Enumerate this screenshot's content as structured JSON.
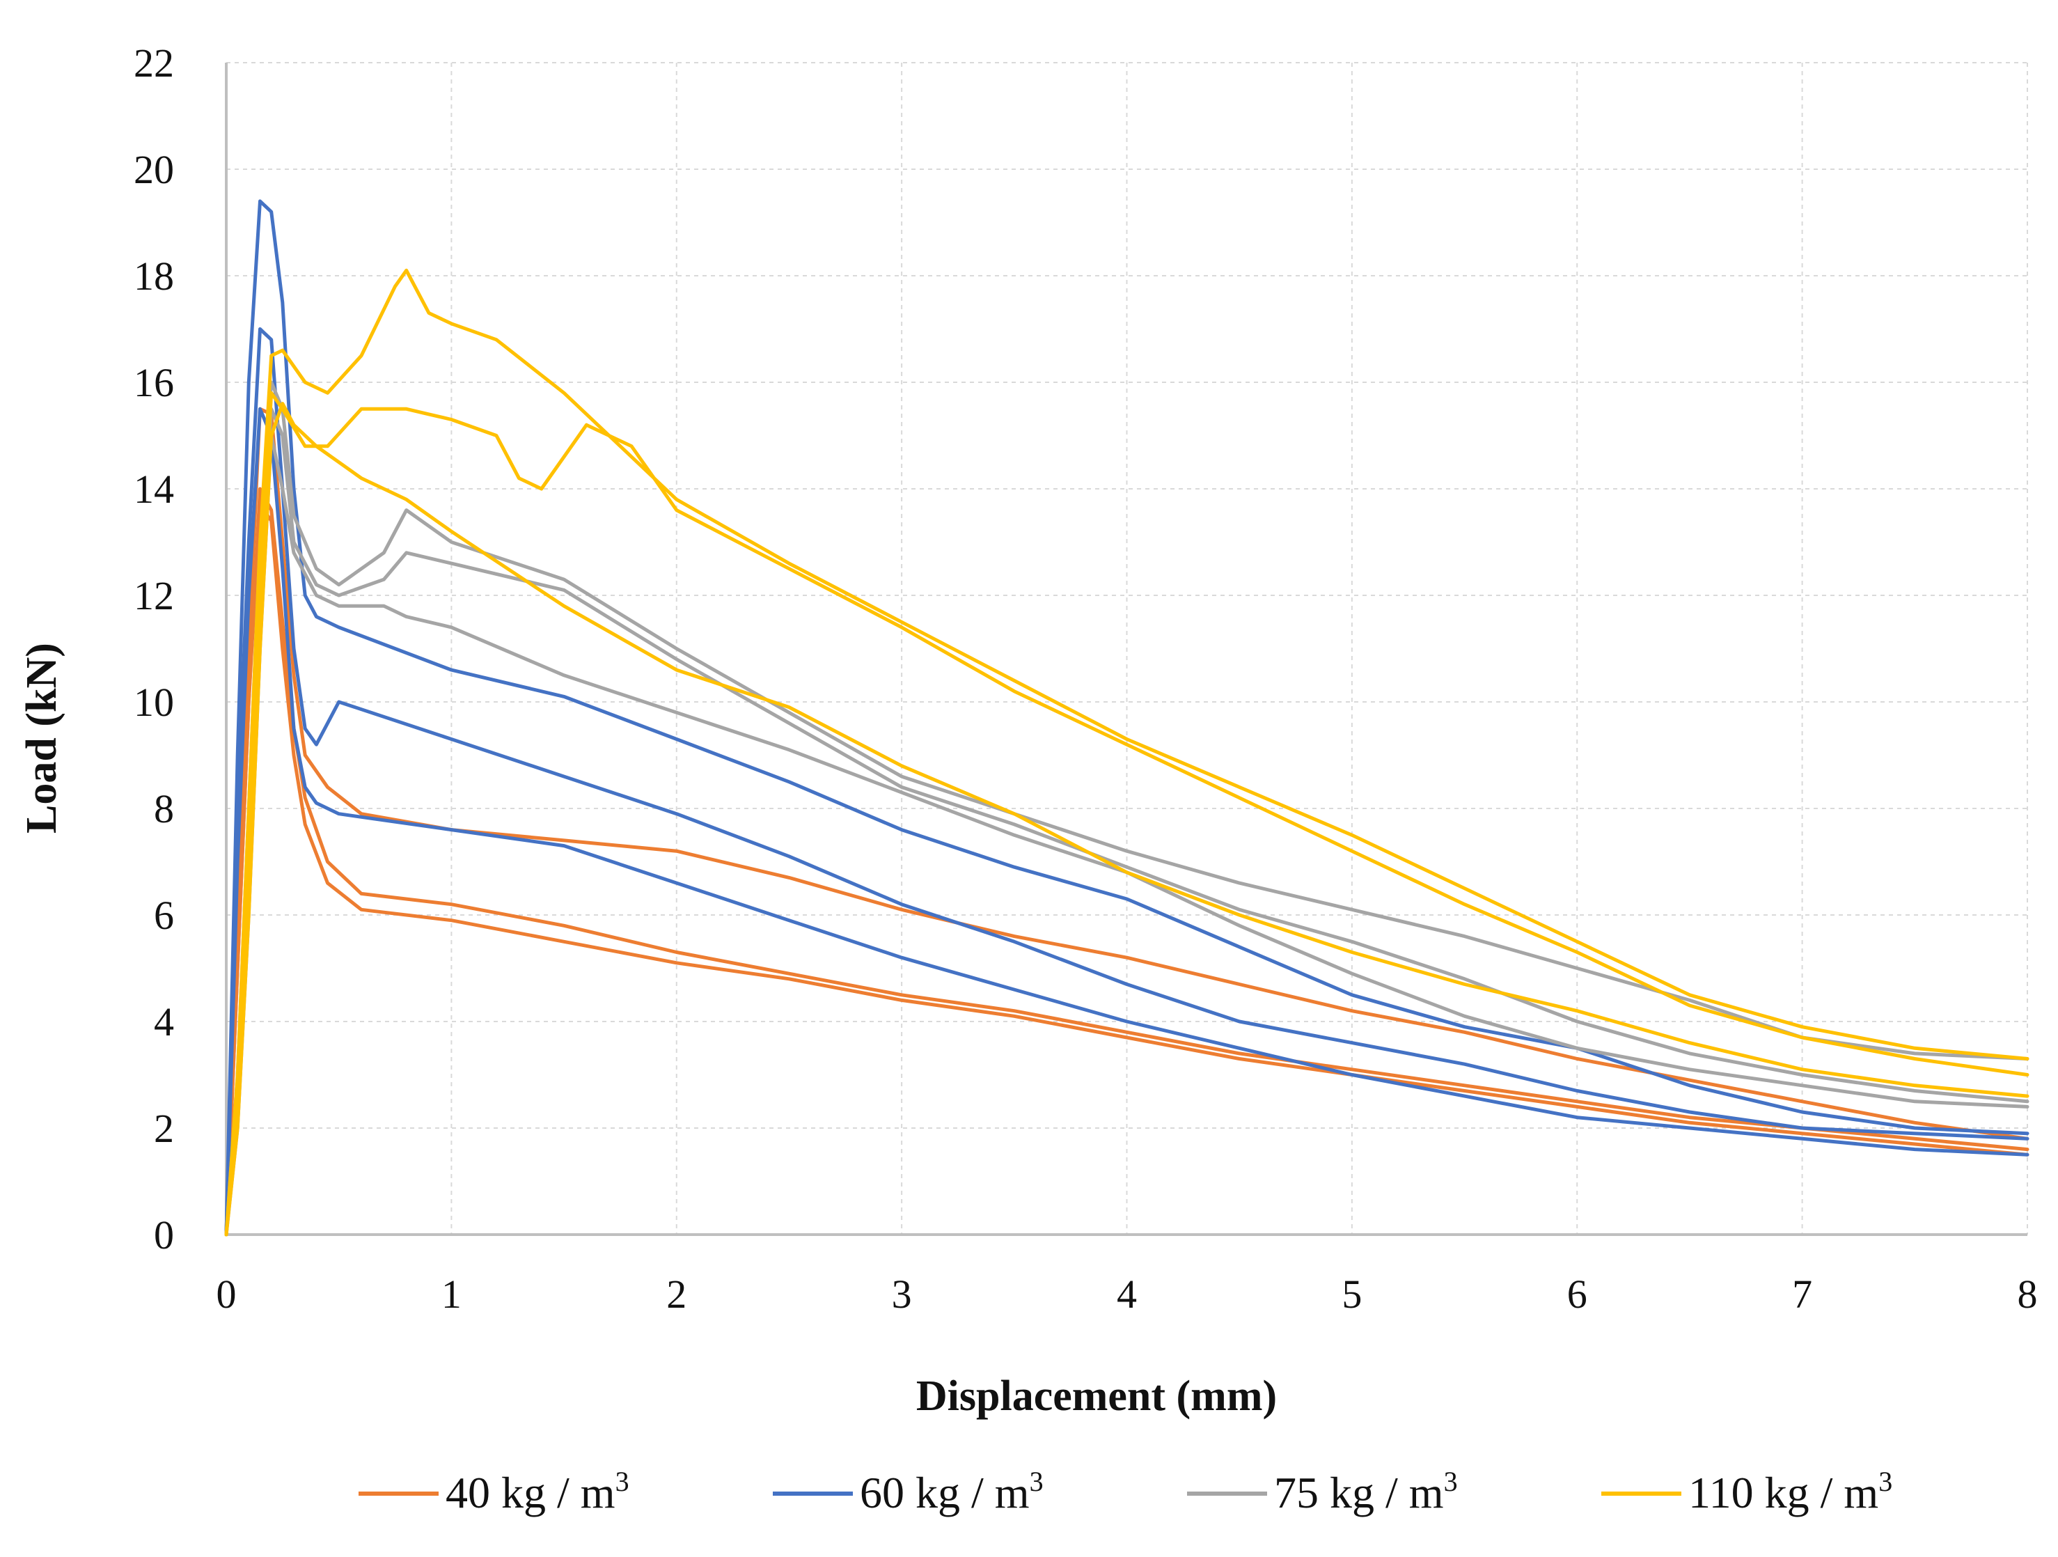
{
  "chart_data": {
    "type": "line",
    "title": "",
    "xlabel": "Displacement  (mm)",
    "ylabel": "Load  (kN)",
    "xlim": [
      0,
      8
    ],
    "ylim": [
      0,
      22
    ],
    "x_ticks": [
      "0",
      "1",
      "2",
      "3",
      "4",
      "5",
      "6",
      "7",
      "8"
    ],
    "y_ticks": [
      "0",
      "2",
      "4",
      "6",
      "8",
      "10",
      "12",
      "14",
      "16",
      "18",
      "20",
      "22"
    ],
    "grid": true,
    "legend_position": "bottom",
    "series": [
      {
        "name": "40 kg / m3",
        "legend_label": "40 kg / m",
        "legend_sup": "3",
        "color": "#ED7D31",
        "curves": [
          {
            "x": [
              0,
              0.05,
              0.1,
              0.15,
              0.2,
              0.25,
              0.3,
              0.35,
              0.45,
              0.6,
              1,
              1.5,
              2,
              2.5,
              3,
              3.5,
              4,
              4.5,
              5,
              5.5,
              6,
              6.5,
              7,
              7.5,
              8
            ],
            "y": [
              0,
              6,
              11,
              15.5,
              15.4,
              13,
              10.5,
              9,
              8.4,
              7.9,
              7.6,
              7.4,
              7.2,
              6.7,
              6.1,
              5.6,
              5.2,
              4.7,
              4.2,
              3.8,
              3.3,
              2.9,
              2.5,
              2.1,
              1.8
            ]
          },
          {
            "x": [
              0,
              0.05,
              0.1,
              0.15,
              0.2,
              0.25,
              0.3,
              0.35,
              0.45,
              0.6,
              1,
              1.5,
              2,
              2.5,
              3,
              3.5,
              4,
              4.5,
              5,
              5.5,
              6,
              6.5,
              7,
              7.5,
              8
            ],
            "y": [
              0,
              5,
              10,
              13.7,
              13.4,
              11,
              9,
              7.7,
              6.6,
              6.1,
              5.9,
              5.5,
              5.1,
              4.8,
              4.4,
              4.1,
              3.7,
              3.3,
              3.0,
              2.7,
              2.4,
              2.1,
              1.9,
              1.7,
              1.5
            ]
          },
          {
            "x": [
              0,
              0.05,
              0.1,
              0.15,
              0.2,
              0.25,
              0.3,
              0.35,
              0.45,
              0.6,
              1,
              1.5,
              2,
              2.5,
              3,
              3.5,
              4,
              4.5,
              5,
              5.5,
              6,
              6.5,
              7,
              7.5,
              8
            ],
            "y": [
              0,
              5,
              10,
              14,
              13.6,
              11.5,
              9.5,
              8.2,
              7,
              6.4,
              6.2,
              5.8,
              5.3,
              4.9,
              4.5,
              4.2,
              3.8,
              3.4,
              3.1,
              2.8,
              2.5,
              2.2,
              2.0,
              1.8,
              1.6
            ]
          }
        ]
      },
      {
        "name": "60 kg / m3",
        "legend_label": "60 kg / m",
        "legend_sup": "3",
        "color": "#4472C4",
        "curves": [
          {
            "x": [
              0,
              0.05,
              0.1,
              0.15,
              0.2,
              0.25,
              0.3,
              0.35,
              0.4,
              0.5,
              1,
              1.5,
              2,
              2.5,
              3,
              3.5,
              4,
              4.5,
              5,
              5.5,
              6,
              6.5,
              7,
              7.5,
              8
            ],
            "y": [
              0,
              9,
              16,
              19.4,
              19.2,
              17.5,
              14,
              12,
              11.6,
              11.4,
              10.6,
              10.1,
              9.3,
              8.5,
              7.6,
              6.9,
              6.3,
              5.4,
              4.5,
              3.9,
              3.5,
              2.8,
              2.3,
              2.0,
              1.9
            ]
          },
          {
            "x": [
              0,
              0.05,
              0.1,
              0.15,
              0.2,
              0.25,
              0.3,
              0.35,
              0.4,
              0.5,
              1,
              1.5,
              2,
              2.5,
              3,
              3.5,
              4,
              4.5,
              5,
              5.5,
              6,
              6.5,
              7,
              7.5,
              8
            ],
            "y": [
              0,
              8,
              13,
              17,
              16.8,
              14,
              11,
              9.5,
              9.2,
              10,
              9.3,
              8.6,
              7.9,
              7.1,
              6.2,
              5.5,
              4.7,
              4.0,
              3.6,
              3.2,
              2.7,
              2.3,
              2.0,
              1.9,
              1.8
            ]
          },
          {
            "x": [
              0,
              0.05,
              0.1,
              0.15,
              0.2,
              0.25,
              0.3,
              0.35,
              0.4,
              0.5,
              1,
              1.5,
              2,
              2.5,
              3,
              3.5,
              4,
              4.5,
              5,
              5.5,
              6,
              6.5,
              7,
              7.5,
              8
            ],
            "y": [
              0,
              7,
              12,
              15.5,
              15,
              12.5,
              9.5,
              8.4,
              8.1,
              7.9,
              7.6,
              7.3,
              6.6,
              5.9,
              5.2,
              4.6,
              4.0,
              3.5,
              3.0,
              2.6,
              2.2,
              2.0,
              1.8,
              1.6,
              1.5
            ]
          }
        ]
      },
      {
        "name": "75 kg / m3",
        "legend_label": "75 kg / m",
        "legend_sup": "3",
        "color": "#A5A5A5",
        "curves": [
          {
            "x": [
              0,
              0.05,
              0.1,
              0.15,
              0.2,
              0.25,
              0.3,
              0.4,
              0.5,
              0.7,
              0.8,
              1,
              1.5,
              2,
              2.5,
              3,
              3.5,
              4,
              4.5,
              5,
              5.5,
              6,
              6.5,
              7,
              7.5,
              8
            ],
            "y": [
              0,
              3,
              8,
              13,
              16,
              15.5,
              13.5,
              12.5,
              12.2,
              12.8,
              13.6,
              13,
              12.3,
              11,
              9.8,
              8.6,
              7.9,
              7.2,
              6.6,
              6.1,
              5.6,
              5.0,
              4.4,
              3.7,
              3.4,
              3.3
            ]
          },
          {
            "x": [
              0,
              0.05,
              0.1,
              0.15,
              0.2,
              0.25,
              0.3,
              0.4,
              0.5,
              0.7,
              0.8,
              1,
              1.5,
              2,
              2.5,
              3,
              3.5,
              4,
              4.5,
              5,
              5.5,
              6,
              6.5,
              7,
              7.5,
              8
            ],
            "y": [
              0,
              2.5,
              7,
              12,
              15.5,
              15,
              13,
              12.2,
              12,
              12.3,
              12.8,
              12.6,
              12.1,
              10.8,
              9.6,
              8.4,
              7.7,
              6.9,
              6.1,
              5.5,
              4.8,
              4.0,
              3.4,
              3.0,
              2.7,
              2.5
            ]
          },
          {
            "x": [
              0,
              0.05,
              0.1,
              0.15,
              0.2,
              0.25,
              0.3,
              0.4,
              0.5,
              0.7,
              0.8,
              1,
              1.5,
              2,
              2.5,
              3,
              3.5,
              4,
              4.5,
              5,
              5.5,
              6,
              6.5,
              7,
              7.5,
              8
            ],
            "y": [
              0,
              2,
              6,
              11,
              15,
              14,
              12.8,
              12,
              11.8,
              11.8,
              11.6,
              11.4,
              10.5,
              9.8,
              9.1,
              8.3,
              7.5,
              6.8,
              5.8,
              4.9,
              4.1,
              3.5,
              3.1,
              2.8,
              2.5,
              2.4
            ]
          }
        ]
      },
      {
        "name": "110 kg / m3",
        "legend_label": "110 kg / m",
        "legend_sup": "3",
        "color": "#FFC000",
        "curves": [
          {
            "x": [
              0,
              0.05,
              0.1,
              0.15,
              0.2,
              0.25,
              0.35,
              0.45,
              0.6,
              0.75,
              0.8,
              0.9,
              1,
              1.2,
              1.5,
              1.8,
              2,
              2.5,
              3,
              3.5,
              4,
              4.5,
              5,
              5.5,
              6,
              6.5,
              7,
              7.5,
              8
            ],
            "y": [
              0,
              3,
              8,
              13,
              16.5,
              16.6,
              16,
              15.8,
              16.5,
              17.8,
              18.1,
              17.3,
              17.1,
              16.8,
              15.8,
              14.6,
              13.8,
              12.6,
              11.5,
              10.4,
              9.3,
              8.4,
              7.5,
              6.5,
              5.5,
              4.5,
              3.9,
              3.5,
              3.3
            ]
          },
          {
            "x": [
              0,
              0.05,
              0.1,
              0.15,
              0.2,
              0.25,
              0.35,
              0.45,
              0.6,
              0.75,
              0.8,
              0.9,
              1,
              1.2,
              1.3,
              1.4,
              1.6,
              1.8,
              2,
              2.5,
              3,
              3.5,
              4,
              4.5,
              5,
              5.5,
              6,
              6.5,
              7,
              7.5,
              8
            ],
            "y": [
              0,
              2.5,
              7,
              12,
              15.8,
              15.5,
              14.8,
              14.8,
              15.5,
              15.5,
              15.5,
              15.4,
              15.3,
              15.0,
              14.2,
              14.0,
              15.2,
              14.8,
              13.6,
              12.5,
              11.4,
              10.2,
              9.2,
              8.2,
              7.2,
              6.2,
              5.3,
              4.3,
              3.7,
              3.3,
              3.0
            ]
          },
          {
            "x": [
              0,
              0.05,
              0.1,
              0.15,
              0.2,
              0.25,
              0.3,
              0.4,
              0.6,
              0.8,
              1,
              1.5,
              2,
              2.5,
              3,
              3.5,
              4,
              4.5,
              5,
              5.5,
              6,
              6.5,
              7,
              7.5,
              8
            ],
            "y": [
              0,
              2,
              6,
              11,
              15,
              15.6,
              15.2,
              14.8,
              14.2,
              13.8,
              13.2,
              11.8,
              10.6,
              9.9,
              8.8,
              7.9,
              6.8,
              6.0,
              5.3,
              4.7,
              4.2,
              3.6,
              3.1,
              2.8,
              2.6
            ]
          }
        ]
      }
    ]
  }
}
